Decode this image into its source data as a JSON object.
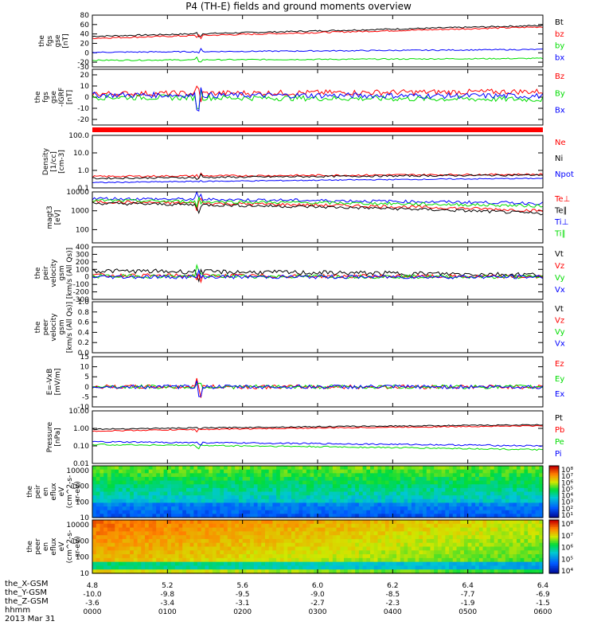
{
  "title": "P4 (TH-E) fields and ground moments overview",
  "colors": {
    "black": "#000000",
    "red": "#ff0000",
    "blue": "#0000ff",
    "green": "#00dd00"
  },
  "chart_data": [
    {
      "type": "line",
      "ylabel": [
        "the",
        "fgs",
        "gse",
        "[nT]"
      ],
      "ylim": [
        -30,
        80
      ],
      "yticks": [
        "80",
        "60",
        "40",
        "20",
        "0",
        "-20",
        "-30"
      ],
      "series": [
        {
          "name": "Bt",
          "color": "black",
          "base": 35,
          "end": 58,
          "noise": 1.5
        },
        {
          "name": "bz",
          "color": "red",
          "base": 31,
          "end": 55,
          "noise": 1.5
        },
        {
          "name": "by",
          "color": "green",
          "base": -16,
          "end": -12,
          "noise": 1.2
        },
        {
          "name": "bx",
          "color": "blue",
          "base": 1,
          "end": 7,
          "noise": 1.2
        }
      ]
    },
    {
      "type": "line",
      "ylabel": [
        "the",
        "fgs",
        "gse",
        "-IGRF",
        "[nT]"
      ],
      "ylim": [
        -25,
        25
      ],
      "yticks": [
        "20",
        "10",
        "0",
        "-10",
        "-20"
      ],
      "series": [
        {
          "name": "Bz",
          "color": "red",
          "base": 3,
          "end": 5,
          "noise": 2.5
        },
        {
          "name": "By",
          "color": "green",
          "base": 0,
          "end": -2,
          "noise": 2.5
        },
        {
          "name": "Bx",
          "color": "blue",
          "base": 2,
          "end": 1,
          "noise": 2.5
        }
      ]
    },
    {
      "type": "line",
      "log": true,
      "ylabel": [
        "Density",
        "[1/cc]",
        "[cm-3]"
      ],
      "ylim": [
        0.1,
        100
      ],
      "yticks": [
        "100.0",
        "10.0",
        "1.0",
        "0.1"
      ],
      "series": [
        {
          "name": "Ne",
          "color": "red",
          "base": 0.45,
          "end": 0.6,
          "noise": 0.05
        },
        {
          "name": "Ni",
          "color": "black",
          "base": 0.35,
          "end": 0.55,
          "noise": 0.05
        },
        {
          "name": "Npot",
          "color": "blue",
          "base": 0.2,
          "end": 0.35,
          "noise": 0.03
        }
      ]
    },
    {
      "type": "line",
      "log": true,
      "ylabel": [
        "magt3",
        "[eV]"
      ],
      "ylim": [
        20,
        10000
      ],
      "yticks": [
        "10000",
        "1000",
        "100"
      ],
      "series": [
        {
          "name": "Te⊥",
          "color": "red",
          "base": 3000,
          "end": 1000,
          "noise": 0.08
        },
        {
          "name": "Te∥",
          "color": "black",
          "base": 2500,
          "end": 700,
          "noise": 0.08
        },
        {
          "name": "Ti⊥",
          "color": "blue",
          "base": 4500,
          "end": 2500,
          "noise": 0.08
        },
        {
          "name": "Ti∥",
          "color": "green",
          "base": 3500,
          "end": 1800,
          "noise": 0.08
        }
      ]
    },
    {
      "type": "line",
      "ylabel": [
        "the",
        "peir",
        "velocity",
        "gsm",
        "[km/s (All Qs)]"
      ],
      "ylim": [
        -300,
        400
      ],
      "yticks": [
        "400",
        "300",
        "200",
        "100",
        "0",
        "-100",
        "-200",
        "-300"
      ],
      "series": [
        {
          "name": "Vt",
          "color": "black",
          "base": 80,
          "end": 30,
          "noise": 30
        },
        {
          "name": "Vz",
          "color": "red",
          "base": 20,
          "end": 0,
          "noise": 25
        },
        {
          "name": "Vy",
          "color": "green",
          "base": 10,
          "end": 0,
          "noise": 25
        },
        {
          "name": "Vx",
          "color": "blue",
          "base": 0,
          "end": 0,
          "noise": 25
        }
      ]
    },
    {
      "type": "line",
      "ylabel": [
        "the",
        "peer",
        "velocity",
        "gsm",
        "[km/s (All Qs)]"
      ],
      "ylim": [
        0,
        1
      ],
      "yticks": [
        "1.0",
        "0.8",
        "0.6",
        "0.4",
        "0.2",
        "0.0"
      ],
      "series": [
        {
          "name": "Vt",
          "color": "black"
        },
        {
          "name": "Vz",
          "color": "red"
        },
        {
          "name": "Vy",
          "color": "green"
        },
        {
          "name": "Vx",
          "color": "blue"
        }
      ]
    },
    {
      "type": "line",
      "ylabel": [
        "E=-VxB",
        "[mV/m]"
      ],
      "ylim": [
        -10,
        15
      ],
      "yticks": [
        "15",
        "10",
        "5",
        "0",
        "-5",
        "-10"
      ],
      "series": [
        {
          "name": "Ez",
          "color": "red",
          "base": 0,
          "end": 0,
          "noise": 1
        },
        {
          "name": "Ey",
          "color": "green",
          "base": 0,
          "end": 0,
          "noise": 1
        },
        {
          "name": "Ex",
          "color": "blue",
          "base": 0,
          "end": 0,
          "noise": 1
        }
      ]
    },
    {
      "type": "line",
      "log": true,
      "ylabel": [
        "Pressure",
        "[nPa]"
      ],
      "ylim": [
        0.01,
        10
      ],
      "yticks": [
        "10.00",
        "1.00",
        "0.10",
        "0.01"
      ],
      "series": [
        {
          "name": "Pt",
          "color": "black",
          "base": 0.9,
          "end": 1.6,
          "noise": 0.03
        },
        {
          "name": "Pb",
          "color": "red",
          "base": 0.7,
          "end": 1.4,
          "noise": 0.03
        },
        {
          "name": "Pe",
          "color": "green",
          "base": 0.12,
          "end": 0.06,
          "noise": 0.04
        },
        {
          "name": "Pi",
          "color": "blue",
          "base": 0.17,
          "end": 0.1,
          "noise": 0.04
        }
      ]
    },
    {
      "type": "heatmap",
      "ylabel": [
        "the",
        "peir",
        "en",
        "eflux",
        "eV",
        "(cm^2-s-",
        "sr-eV)"
      ],
      "ylim": [
        10,
        20000
      ],
      "yticks": [
        "10000",
        "1000",
        "100",
        "10"
      ],
      "colorbar": [
        "10⁸",
        "10⁷",
        "10⁶",
        "10⁵",
        "10⁴",
        "10³",
        "10²",
        "10¹"
      ]
    },
    {
      "type": "heatmap",
      "ylabel": [
        "the",
        "peer",
        "en",
        "eflux",
        "eV",
        "(cm^2-s-",
        "sr-eV)"
      ],
      "ylim": [
        10,
        20000
      ],
      "yticks": [
        "10000",
        "1000",
        "100",
        "10"
      ],
      "colorbar": [
        "10⁸",
        "10⁷",
        "10⁶",
        "10⁵",
        "10⁴"
      ]
    }
  ],
  "x_axis": {
    "xlim": [
      0,
      6
    ],
    "rows": [
      {
        "label": "the_X-GSM",
        "values": [
          "4.8",
          "5.2",
          "5.6",
          "6.0",
          "6.2",
          "6.4",
          "6.4"
        ]
      },
      {
        "label": "the_Y-GSM",
        "values": [
          "-10.0",
          "-9.8",
          "-9.5",
          "-9.0",
          "-8.5",
          "-7.7",
          "-6.9"
        ]
      },
      {
        "label": "the_Z-GSM",
        "values": [
          "-3.6",
          "-3.4",
          "-3.1",
          "-2.7",
          "-2.3",
          "-1.9",
          "-1.5"
        ]
      },
      {
        "label": "hhmm",
        "values": [
          "0000",
          "0100",
          "0200",
          "0300",
          "0400",
          "0500",
          "0600"
        ]
      }
    ],
    "date": "2013 Mar 31"
  }
}
